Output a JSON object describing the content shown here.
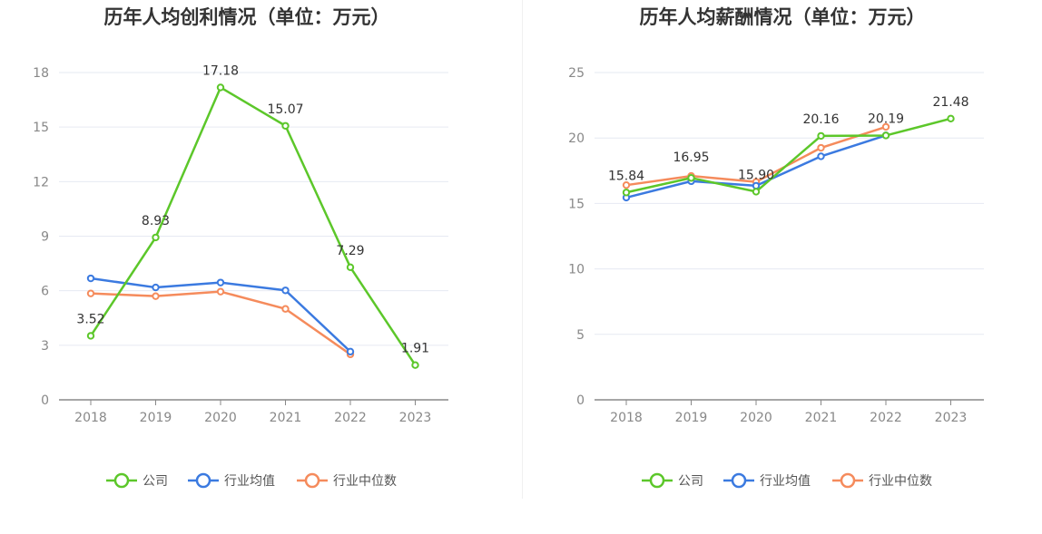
{
  "chart_data": [
    {
      "type": "line",
      "title": "历年人均创利情况（单位：万元）",
      "xlabel": "",
      "ylabel": "",
      "categories": [
        "2018",
        "2019",
        "2020",
        "2021",
        "2022",
        "2023"
      ],
      "ylim": [
        0,
        18
      ],
      "yticks": [
        0,
        3,
        6,
        9,
        12,
        15,
        18
      ],
      "grid": true,
      "legend_position": "bottom",
      "series": [
        {
          "name": "公司",
          "color": "#5cc72a",
          "values": [
            3.52,
            8.93,
            17.18,
            15.07,
            7.29,
            1.91
          ],
          "data_labels": [
            "3.52",
            "8.93",
            "17.18",
            "15.07",
            "7.29",
            "1.91"
          ]
        },
        {
          "name": "行业均值",
          "color": "#3b7ae0",
          "values": [
            6.68,
            6.18,
            6.45,
            6.02,
            2.65,
            null
          ]
        },
        {
          "name": "行业中位数",
          "color": "#f58b5c",
          "values": [
            5.85,
            5.7,
            5.95,
            5.0,
            2.5,
            null
          ]
        }
      ]
    },
    {
      "type": "line",
      "title": "历年人均薪酬情况（单位：万元）",
      "xlabel": "",
      "ylabel": "",
      "categories": [
        "2018",
        "2019",
        "2020",
        "2021",
        "2022",
        "2023"
      ],
      "ylim": [
        0,
        25
      ],
      "yticks": [
        0,
        5,
        10,
        15,
        20,
        25
      ],
      "grid": true,
      "legend_position": "bottom",
      "series": [
        {
          "name": "公司",
          "color": "#5cc72a",
          "values": [
            15.84,
            16.95,
            15.9,
            20.16,
            20.19,
            21.48
          ],
          "data_labels": [
            "15.84",
            "16.95",
            "15.90",
            "20.16",
            "20.19",
            "21.48"
          ]
        },
        {
          "name": "行业均值",
          "color": "#3b7ae0",
          "values": [
            15.45,
            16.7,
            16.35,
            18.6,
            20.2,
            null
          ]
        },
        {
          "name": "行业中位数",
          "color": "#f58b5c",
          "values": [
            16.4,
            17.1,
            16.65,
            19.25,
            20.85,
            null
          ]
        }
      ]
    }
  ]
}
